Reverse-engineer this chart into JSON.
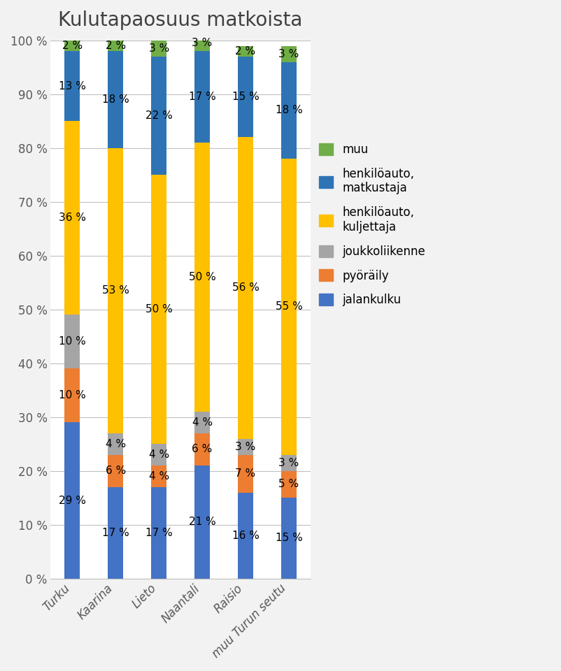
{
  "title": "Kulutapaosuus matkoista",
  "categories": [
    "Turku",
    "Kaarina",
    "Lieto",
    "Naantali",
    "Raisio",
    "muu Turun seutu"
  ],
  "series": {
    "jalankulku": [
      29,
      17,
      17,
      21,
      16,
      15
    ],
    "pyöräily": [
      10,
      6,
      4,
      6,
      7,
      5
    ],
    "joukkoliikenne": [
      10,
      4,
      4,
      4,
      3,
      3
    ],
    "henkilöauto, kuljettaja": [
      36,
      53,
      50,
      50,
      56,
      55
    ],
    "henkilöauto, matkustaja": [
      13,
      18,
      22,
      17,
      15,
      18
    ],
    "muu": [
      2,
      2,
      3,
      3,
      2,
      3
    ]
  },
  "colors": {
    "jalankulku": "#4472C4",
    "pyöräily": "#ED7D31",
    "joukkoliikenne": "#A5A5A5",
    "henkilöauto, kuljettaja": "#FFC000",
    "henkilöauto, matkustaja": "#4472C4",
    "muu": "#70AD47"
  },
  "ha_matkustaja_color": "#2E74B5",
  "legend_order": [
    "muu",
    "henkilöauto, matkustaja",
    "henkilöauto, kuljettaja",
    "joukkoliikenne",
    "pyöräily",
    "jalankulku"
  ],
  "ylim": [
    0,
    100
  ],
  "yticks": [
    0,
    10,
    20,
    30,
    40,
    50,
    60,
    70,
    80,
    90,
    100
  ],
  "ytick_labels": [
    "0 %",
    "10 %",
    "20 %",
    "30 %",
    "40 %",
    "50 %",
    "60 %",
    "70 %",
    "80 %",
    "90 %",
    "100 %"
  ],
  "bar_width": 0.35,
  "title_fontsize": 20,
  "tick_fontsize": 12,
  "label_fontsize": 11,
  "legend_fontsize": 12,
  "fig_bg": "#F2F2F2",
  "plot_bg": "#FFFFFF"
}
